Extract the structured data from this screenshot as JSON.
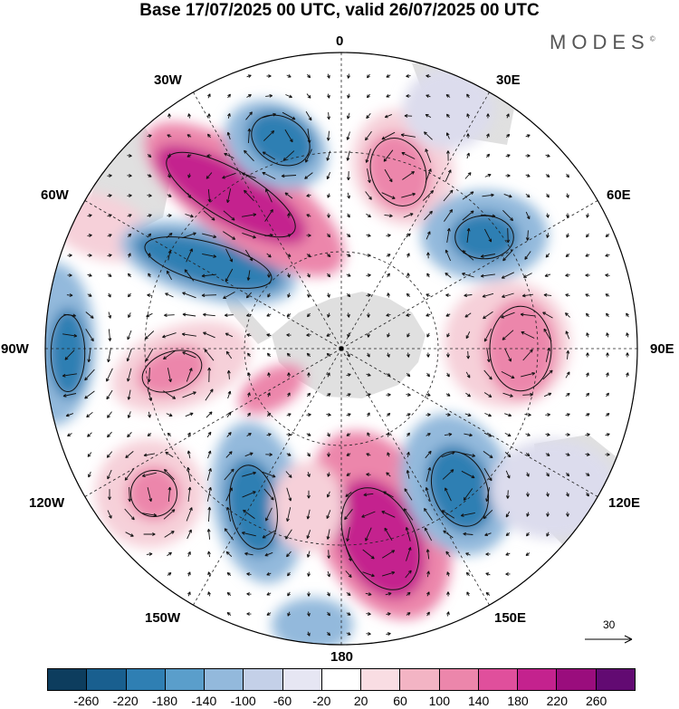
{
  "title": "Base 17/07/2025 00 UTC, valid 26/07/2025 00 UTC",
  "brand": "MODES",
  "brand_mark": "©",
  "longitude_labels": {
    "top": "0",
    "top_right": "30E",
    "right_upper": "60E",
    "right": "90E",
    "right_lower": "120E",
    "bottom_right": "150E",
    "bottom": "180",
    "bottom_left": "150W",
    "left_lower": "120W",
    "left": "90W",
    "left_upper": "60W",
    "top_left": "30W"
  },
  "vector_reference": {
    "label": "30"
  },
  "colorbar": {
    "colors": [
      "#0d3d5e",
      "#195f8f",
      "#2f7fb3",
      "#5a9ecb",
      "#93b9dc",
      "#c4d0e8",
      "#e6e6f3",
      "#ffffff",
      "#f9dde3",
      "#f3b4c4",
      "#ec86ab",
      "#e04f9c",
      "#c4228e",
      "#9a0d7d",
      "#620a72"
    ],
    "tick_labels": [
      "-260",
      "-220",
      "-180",
      "-140",
      "-100",
      "-60",
      "-20",
      "20",
      "60",
      "100",
      "140",
      "180",
      "220",
      "260"
    ]
  },
  "colors": {
    "strong_negative": "#2f7fb3",
    "moderate_negative": "#93b9dc",
    "weak_negative": "#dcdced",
    "weak_positive": "#f6d0d9",
    "moderate_positive": "#ec86ab",
    "strong_positive": "#c4228e",
    "land": "#d7d7d7"
  }
}
